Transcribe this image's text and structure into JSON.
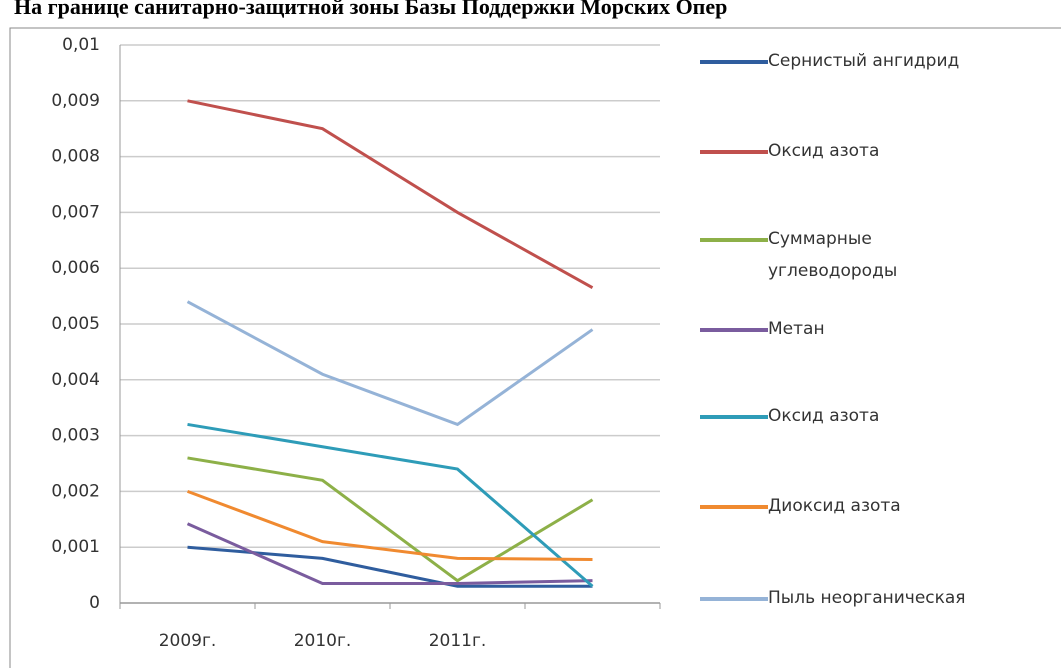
{
  "chart_data": {
    "type": "line",
    "title": "На границе санитарно-защитной зоны Базы Поддержки Морских Опер",
    "categories": [
      "2009г.",
      "2010г.",
      "2011г.",
      null
    ],
    "series": [
      {
        "name": "Сернистый ангидрид",
        "color": "#2f5d9e",
        "values": [
          0.001,
          0.0008,
          0.0003,
          0.0003
        ]
      },
      {
        "name": "Оксид азота",
        "color": "#c0504d",
        "values": [
          0.009,
          0.0085,
          0.007,
          0.00565
        ]
      },
      {
        "name": "Суммарные углеводороды",
        "color": "#8db048",
        "values": [
          0.0026,
          0.0022,
          0.0004,
          0.00185
        ]
      },
      {
        "name": "Метан",
        "color": "#7a5c9e",
        "values": [
          0.00142,
          0.00035,
          0.00035,
          0.0004
        ]
      },
      {
        "name": "Оксид азота",
        "color": "#2e9cb8",
        "values": [
          0.0032,
          0.0028,
          0.0024,
          0.0003
        ]
      },
      {
        "name": "Диоксид азота",
        "color": "#f08a30",
        "values": [
          0.002,
          0.0011,
          0.0008,
          0.00078
        ]
      },
      {
        "name": "Пыль неорганическая",
        "color": "#95b3d7",
        "values": [
          0.0054,
          0.0041,
          0.0032,
          0.0049
        ]
      }
    ],
    "ylim": [
      0,
      0.01
    ],
    "yticks": [
      0,
      {
        "value": 0.001,
        "label": "0,001"
      },
      {
        "value": 0.002,
        "label": "0,002"
      },
      {
        "value": 0.003,
        "label": "0,003"
      },
      {
        "value": 0.004,
        "label": "0,004"
      },
      {
        "value": 0.005,
        "label": "0,005"
      },
      {
        "value": 0.006,
        "label": "0,006"
      },
      {
        "value": 0.007,
        "label": "0,007"
      },
      {
        "value": 0.008,
        "label": "0,008"
      },
      {
        "value": 0.009,
        "label": "0,009"
      },
      {
        "value": 0.01,
        "label": "0,01"
      }
    ],
    "grid": true,
    "legend": "right"
  }
}
